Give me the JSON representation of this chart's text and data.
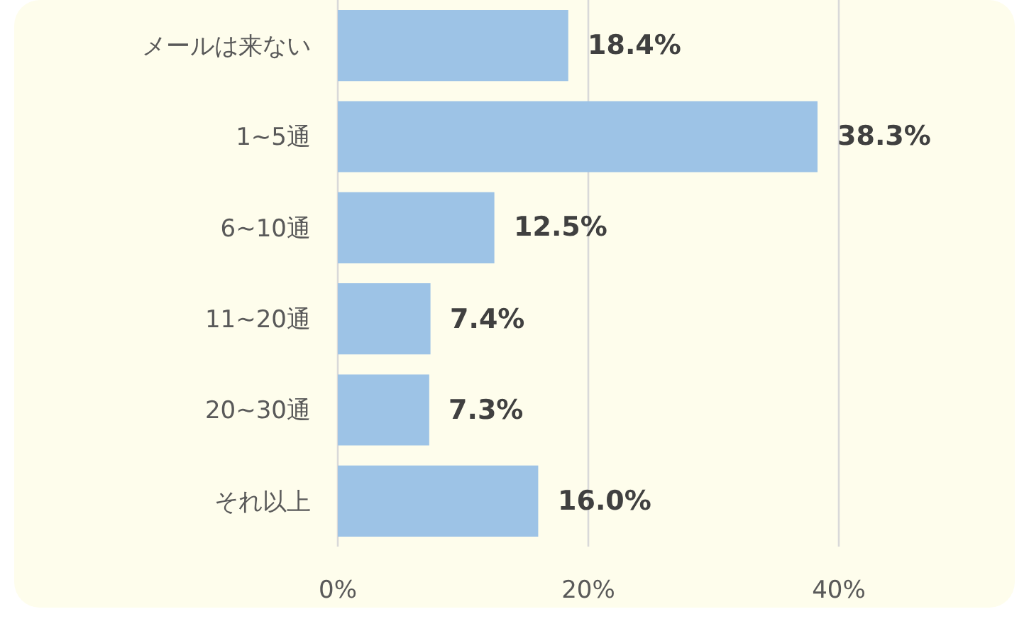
{
  "chart_data": {
    "type": "bar",
    "orientation": "horizontal",
    "categories": [
      "メールは来ない",
      "1~5通",
      "6~10通",
      "11~20通",
      "20~30通",
      "それ以上"
    ],
    "values": [
      18.4,
      38.3,
      12.5,
      7.4,
      7.3,
      16.0
    ],
    "value_labels": [
      "18.4%",
      "38.3%",
      "12.5%",
      "7.4%",
      "7.3%",
      "16.0%"
    ],
    "color": "#9dc3e6",
    "xlim": [
      0,
      40
    ],
    "xticks": [
      {
        "value": 0,
        "label": "0%"
      },
      {
        "value": 20,
        "label": "20%"
      },
      {
        "value": 40,
        "label": "40%"
      }
    ],
    "grid": "x"
  }
}
